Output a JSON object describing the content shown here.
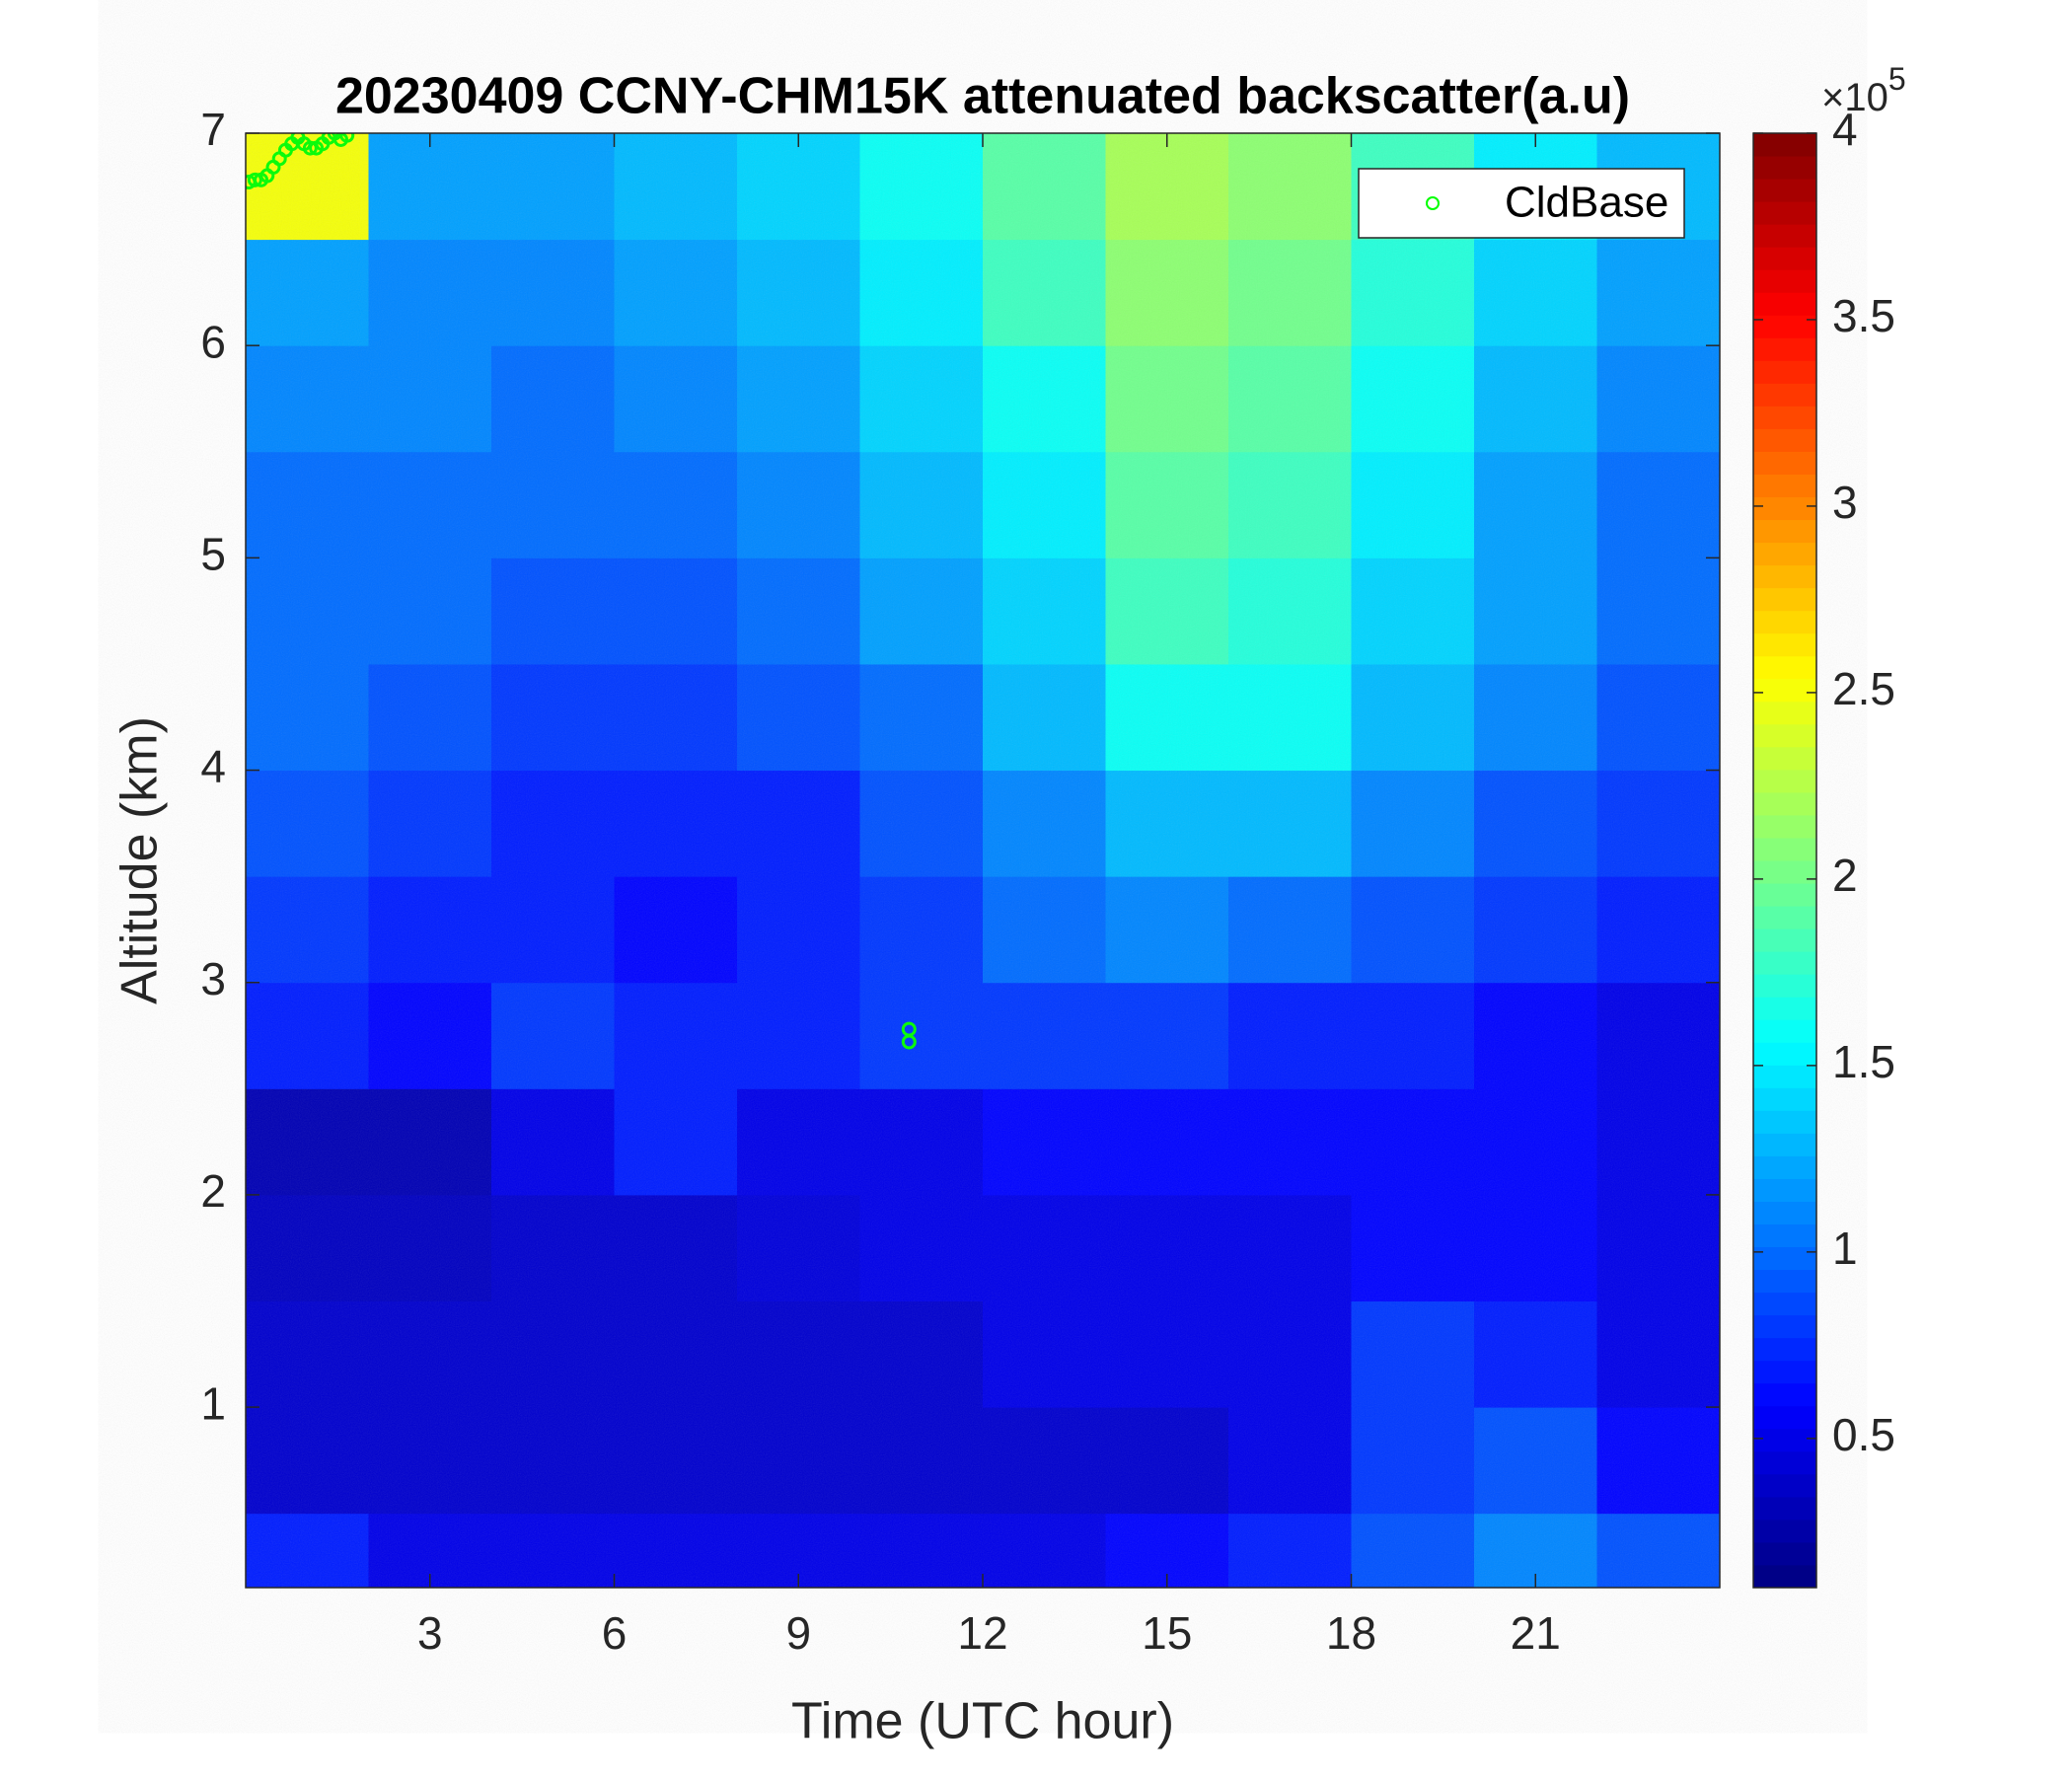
{
  "chart_data": {
    "type": "heatmap",
    "title": "20230409 CCNY-CHM15K attenuated backscatter(a.u)",
    "x_label": "Time (UTC hour)",
    "y_label": "Altitude (km)",
    "xlim": [
      0,
      24
    ],
    "xticks": [
      3,
      6,
      9,
      12,
      15,
      18,
      21
    ],
    "ylim": [
      0.15,
      7
    ],
    "yticks": [
      1,
      2,
      3,
      4,
      5,
      6,
      7
    ],
    "colormap": "jet",
    "clim": [
      0.1,
      4
    ],
    "cticks": [
      0.5,
      1,
      1.5,
      2,
      2.5,
      3,
      3.5,
      4
    ],
    "colorbar_multiplier_base": "×10",
    "colorbar_multiplier_exponent": "5",
    "xbins": [
      0,
      2,
      4,
      6,
      8,
      10,
      12,
      14,
      16,
      18,
      20,
      22,
      24
    ],
    "ybins": [
      0.15,
      0.5,
      1,
      1.5,
      2,
      2.5,
      3,
      3.5,
      4,
      4.5,
      5,
      5.5,
      6,
      6.5,
      7
    ],
    "z": [
      [
        0.7,
        0.5,
        0.5,
        0.5,
        0.5,
        0.5,
        0.5,
        0.6,
        0.7,
        0.9,
        1.1,
        0.9
      ],
      [
        0.4,
        0.4,
        0.4,
        0.4,
        0.4,
        0.4,
        0.4,
        0.4,
        0.5,
        0.8,
        0.9,
        0.6
      ],
      [
        0.4,
        0.4,
        0.4,
        0.4,
        0.4,
        0.4,
        0.5,
        0.5,
        0.5,
        0.8,
        0.7,
        0.5
      ],
      [
        0.35,
        0.35,
        0.4,
        0.4,
        0.45,
        0.5,
        0.5,
        0.5,
        0.5,
        0.6,
        0.6,
        0.5
      ],
      [
        0.3,
        0.3,
        0.5,
        0.7,
        0.5,
        0.5,
        0.6,
        0.6,
        0.6,
        0.6,
        0.6,
        0.5
      ],
      [
        0.7,
        0.6,
        0.8,
        0.7,
        0.7,
        0.8,
        0.8,
        0.8,
        0.7,
        0.7,
        0.6,
        0.5
      ],
      [
        0.8,
        0.7,
        0.7,
        0.6,
        0.7,
        0.8,
        1.0,
        1.1,
        1.0,
        0.9,
        0.8,
        0.7
      ],
      [
        0.9,
        0.8,
        0.7,
        0.7,
        0.7,
        0.9,
        1.1,
        1.3,
        1.3,
        1.1,
        0.9,
        0.8
      ],
      [
        1.0,
        0.9,
        0.8,
        0.8,
        0.9,
        1.0,
        1.3,
        1.6,
        1.6,
        1.3,
        1.1,
        0.9
      ],
      [
        1.0,
        1.0,
        0.9,
        0.9,
        1.0,
        1.2,
        1.4,
        1.8,
        1.7,
        1.4,
        1.2,
        1.0
      ],
      [
        1.0,
        1.0,
        1.0,
        1.0,
        1.1,
        1.3,
        1.5,
        1.9,
        1.8,
        1.5,
        1.2,
        1.0
      ],
      [
        1.1,
        1.1,
        1.0,
        1.1,
        1.2,
        1.4,
        1.6,
        2.0,
        1.9,
        1.6,
        1.3,
        1.1
      ],
      [
        1.2,
        1.1,
        1.1,
        1.2,
        1.3,
        1.5,
        1.8,
        2.1,
        2.0,
        1.7,
        1.4,
        1.2
      ],
      [
        2.5,
        1.2,
        1.2,
        1.3,
        1.4,
        1.6,
        1.9,
        2.2,
        2.1,
        1.8,
        1.5,
        1.3
      ]
    ],
    "series": [
      {
        "name": "CldBase",
        "color": "#00ff00",
        "x": [
          0.05,
          0.15,
          0.25,
          0.35,
          0.45,
          0.55,
          0.65,
          0.75,
          0.85,
          0.95,
          1.05,
          1.15,
          1.25,
          1.35,
          1.45,
          1.55,
          1.65,
          10.8,
          10.8
        ],
        "values": [
          6.77,
          6.78,
          6.78,
          6.8,
          6.84,
          6.88,
          6.92,
          6.95,
          6.98,
          6.95,
          6.93,
          6.93,
          6.95,
          6.98,
          7.0,
          6.97,
          6.99,
          2.78,
          2.72
        ]
      }
    ],
    "legend": "northeast"
  }
}
